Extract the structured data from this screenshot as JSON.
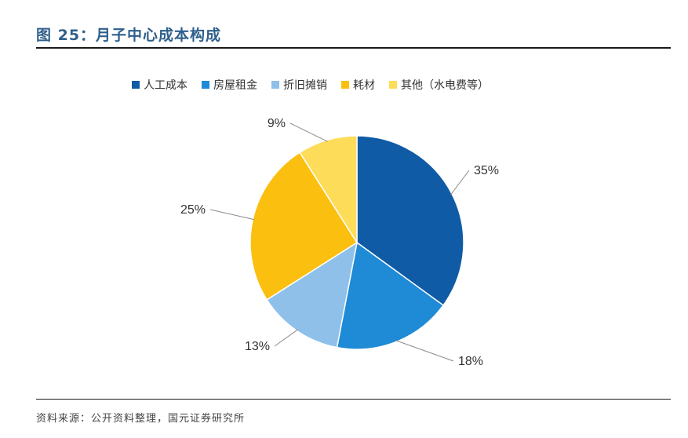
{
  "figure": {
    "title": "图 25：月子中心成本构成",
    "source": "资料来源：公开资料整理，国元证券研究所"
  },
  "chart_data": {
    "type": "pie",
    "title": "",
    "categories": [
      "人工成本",
      "房屋租金",
      "折旧摊销",
      "耗材",
      "其他（水电费等）"
    ],
    "values": [
      35,
      18,
      13,
      25,
      9
    ],
    "labels": [
      "35%",
      "18%",
      "13%",
      "25%",
      "9%"
    ],
    "colors": [
      "#0f5ba6",
      "#1f8ad6",
      "#8ec0ea",
      "#fbbf10",
      "#fddc5a"
    ],
    "legend_position": "top",
    "start_angle": "12 o'clock",
    "direction": "clockwise"
  }
}
